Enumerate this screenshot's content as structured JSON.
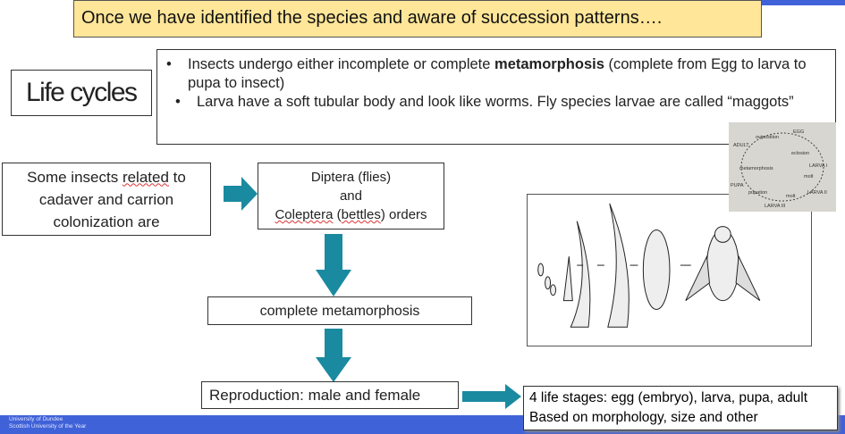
{
  "banner": {
    "text": "Once we have identified the species and aware of succession patterns…."
  },
  "title": "Life cycles",
  "bullets": [
    {
      "pre": "Insects undergo either incomplete or complete ",
      "bold": "metamorphosis",
      "post": " (complete from Egg to larva to pupa to insect)"
    },
    {
      "pre": "Larva have a soft tubular body and look like worms.  Fly species larvae are called “maggots”",
      "bold": "",
      "post": ""
    }
  ],
  "bullet_char": "•",
  "flow": {
    "intro_pre": "Some insects ",
    "intro_squig": "related",
    "intro_post": " to cadaver and carrion colonization are",
    "orders_line1": "Diptera (flies)",
    "orders_line2": "and",
    "orders_line3_squig": "Coleptera",
    "orders_line3_mid": " (",
    "orders_line3_squig2": "bettles",
    "orders_line3_post": ") orders",
    "metamorphosis": "complete  metamorphosis",
    "reproduction": "Reproduction: male and female",
    "stages_line1": "4 life stages: egg (embryo), larva, pupa, adult",
    "stages_line2": "Based on morphology, size and other"
  },
  "lifecycle_photo": {
    "labels": [
      "EGG",
      "oviposition",
      "ADULT",
      "eclosion",
      "LARVA I",
      "metamorphosis",
      "molt",
      "PUPA",
      "LARVA II",
      "pupation",
      "molt",
      "LARVA III"
    ]
  },
  "footer": {
    "line1": "University of Dundee",
    "line2": "Scottish University of the Year"
  },
  "colors": {
    "arrow": "#1a8aa0",
    "banner": "#ffe699",
    "footer": "#4062d8"
  }
}
